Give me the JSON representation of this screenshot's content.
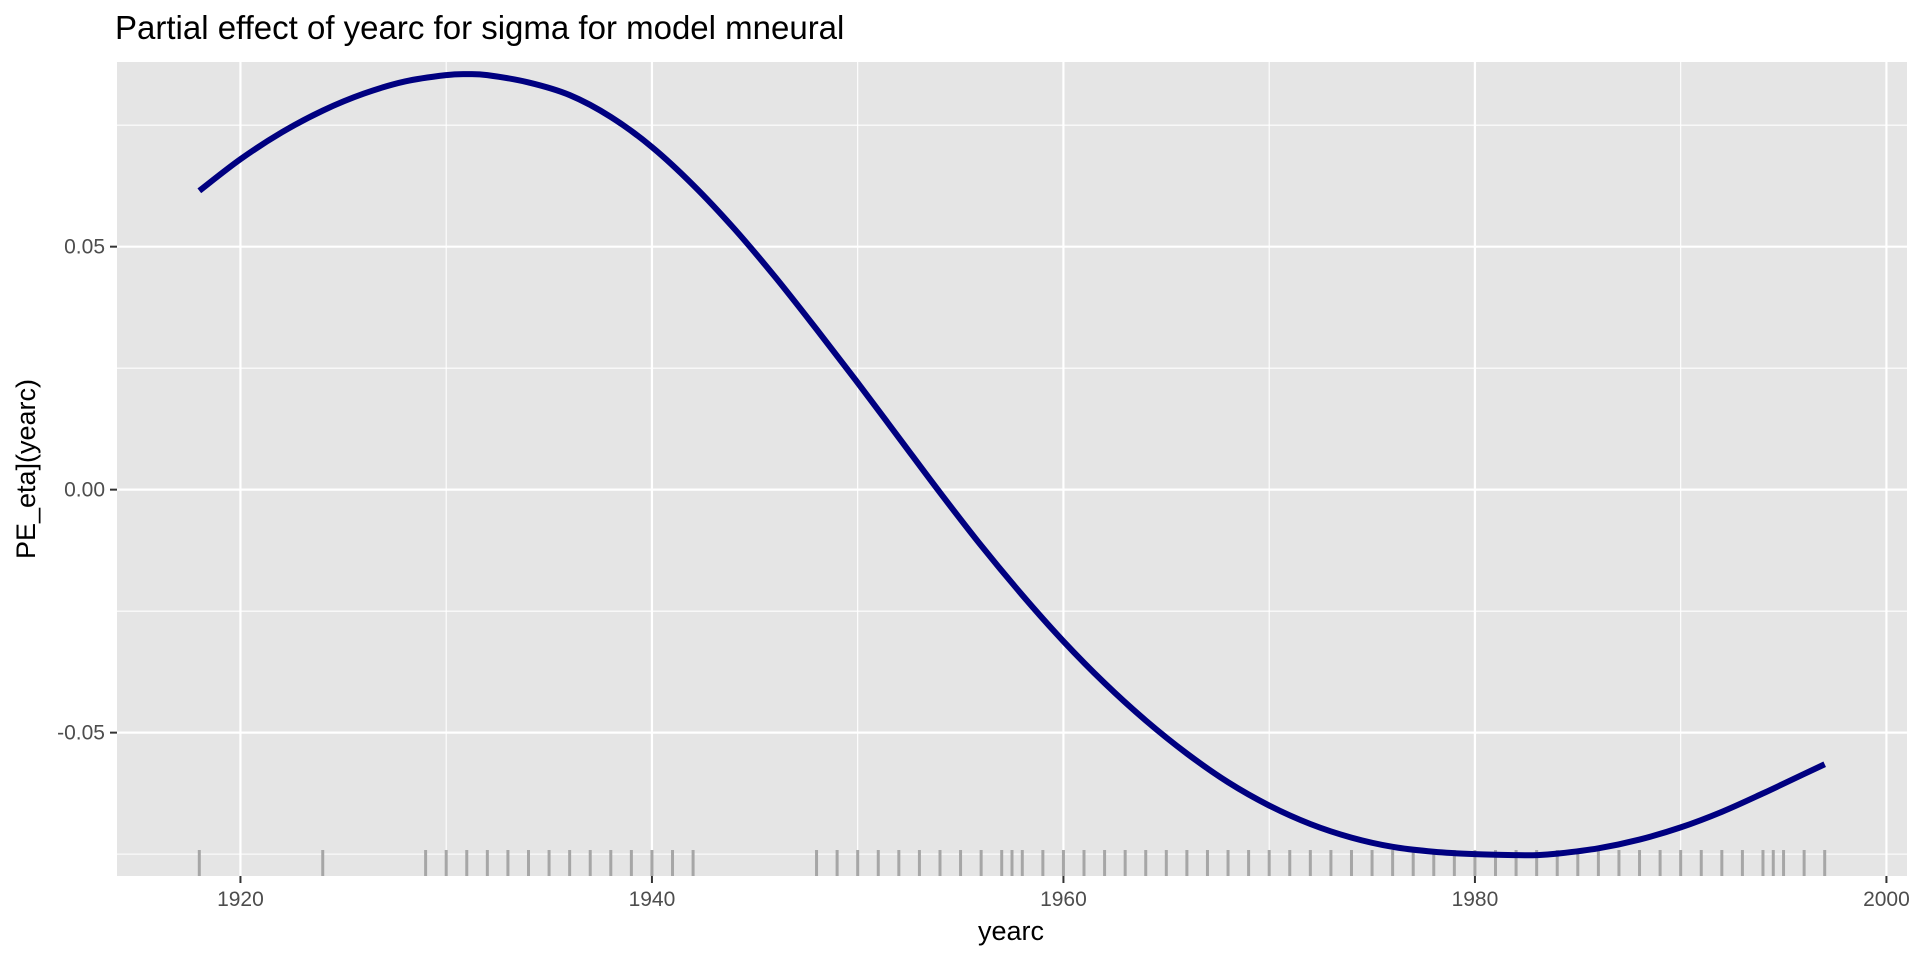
{
  "chart_data": {
    "type": "line",
    "title": "Partial effect of yearc for sigma for model mneural",
    "xlabel": "yearc",
    "ylabel": "PE_eta](yearc)",
    "xlim": [
      1914,
      2001
    ],
    "ylim": [
      -0.0795,
      0.088
    ],
    "x_ticks": [
      1920,
      1940,
      1960,
      1980,
      2000
    ],
    "x_tick_labels": [
      "1920",
      "1940",
      "1960",
      "1980",
      "2000"
    ],
    "x_minor_ticks": [
      1930,
      1950,
      1970,
      1990
    ],
    "y_ticks": [
      -0.05,
      0.0,
      0.05
    ],
    "y_tick_labels": [
      "-0.05",
      "0.00",
      "0.05"
    ],
    "y_minor_ticks": [
      -0.075,
      -0.025,
      0.025,
      0.075
    ],
    "grid": true,
    "background": "#e5e5e5",
    "grid_color": "#ffffff",
    "line_color": "#000080",
    "rug_color": "#a6a6a6",
    "series": [
      {
        "x": [
          1918,
          1920,
          1922,
          1924,
          1926,
          1928,
          1930,
          1931,
          1932,
          1934,
          1936,
          1938,
          1940,
          1942,
          1944,
          1946,
          1948,
          1950,
          1952,
          1954,
          1956,
          1958,
          1960,
          1962,
          1964,
          1966,
          1968,
          1970,
          1972,
          1974,
          1976,
          1978,
          1980,
          1982,
          1983,
          1984,
          1986,
          1988,
          1990,
          1992,
          1994,
          1996,
          1997
        ],
        "y": [
          0.0615,
          0.068,
          0.0735,
          0.078,
          0.0815,
          0.084,
          0.0853,
          0.0855,
          0.0853,
          0.0838,
          0.0812,
          0.0767,
          0.0705,
          0.0627,
          0.0537,
          0.0437,
          0.033,
          0.022,
          0.0107,
          -0.0006,
          -0.0115,
          -0.0217,
          -0.0312,
          -0.0398,
          -0.0475,
          -0.0543,
          -0.0602,
          -0.065,
          -0.0688,
          -0.0716,
          -0.0735,
          -0.0745,
          -0.075,
          -0.0752,
          -0.0752,
          -0.0749,
          -0.0738,
          -0.072,
          -0.0695,
          -0.0663,
          -0.0625,
          -0.0585,
          -0.0565
        ]
      }
    ],
    "rug": [
      1918,
      1924,
      1929,
      1930,
      1931,
      1932,
      1933,
      1934,
      1935,
      1936,
      1937,
      1938,
      1939,
      1940,
      1941,
      1942,
      1948,
      1949,
      1950,
      1951,
      1952,
      1953,
      1954,
      1955,
      1956,
      1957,
      1957.5,
      1958,
      1959,
      1960,
      1961,
      1962,
      1963,
      1964,
      1965,
      1966,
      1967,
      1968,
      1969,
      1970,
      1971,
      1972,
      1973,
      1974,
      1975,
      1976,
      1977,
      1978,
      1979,
      1980,
      1981,
      1982,
      1983,
      1984,
      1985,
      1986,
      1987,
      1988,
      1989,
      1990,
      1991,
      1992,
      1993,
      1994,
      1994.5,
      1995,
      1996,
      1997
    ]
  }
}
